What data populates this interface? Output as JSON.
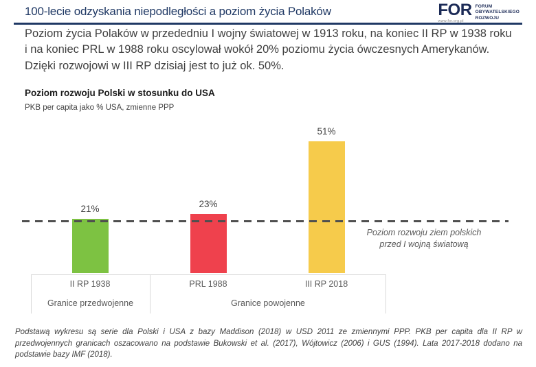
{
  "header": {
    "title": "100-lecie odzyskania niepodległości a poziom życia Polaków",
    "logo": {
      "brand": "FOR",
      "tagline_lines": [
        "FORUM",
        "OBYWATELSKIEGO",
        "ROZWOJU"
      ],
      "url": "www.for.org.pl"
    }
  },
  "intro": {
    "text": "Poziom życia Polaków w przededniu I wojny światowej w 1913 roku, na koniec II RP w 1938 roku i na koniec PRL w 1988 roku oscylował wokół 20% poziomu życia ówczesnych Amerykanów. Dzięki rozwojowi w III RP dzisiaj jest to już ok. 50%.",
    "text_color": "#3F3F3F"
  },
  "chart_data": {
    "type": "bar",
    "title": "Poziom rozwoju Polski w stosunku do USA",
    "subtitle": "PKB per capita jako % USA, zmienne PPP",
    "categories": [
      "II RP 1938",
      "PRL 1988",
      "III RP 2018"
    ],
    "values": [
      21,
      23,
      51
    ],
    "value_labels": [
      "21%",
      "23%",
      "51%"
    ],
    "bar_colors": [
      "#7DC242",
      "#EF414D",
      "#F6CB4B"
    ],
    "ylim": [
      0,
      55
    ],
    "grid": false,
    "xlabel": "",
    "ylabel": "",
    "reference_line": {
      "value": 20,
      "color": "#4F4F4F",
      "style": "dashed",
      "label_line1": "Poziom rozwoju ziem polskich",
      "label_line2": "przed I wojną światową"
    },
    "group_labels": [
      {
        "label": "Granice przedwojenne",
        "categories_spanned": [
          "II RP 1938"
        ]
      },
      {
        "label": "Granice powojenne",
        "categories_spanned": [
          "PRL 1988",
          "III RP 2018"
        ]
      }
    ],
    "accent_color": "#1F3864"
  },
  "footnote": {
    "text": "Podstawą wykresu są serie dla Polski i USA z bazy Maddison (2018) w USD 2011 ze zmiennymi PPP. PKB per capita dla II RP w przedwojennych granicach oszacowano na podstawie Bukowski et al. (2017), Wójtowicz (2006) i GUS (1994). Lata 2017-2018 dodano na podstawie bazy IMF (2018)."
  }
}
